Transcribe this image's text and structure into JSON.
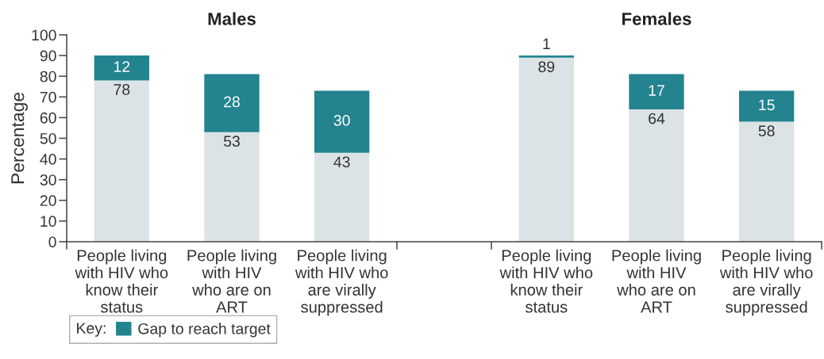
{
  "chart_data": [
    {
      "type": "bar",
      "title": "Males",
      "ylabel": "Percentage",
      "categories": [
        "People living\nwith HIV who\nknow their\nstatus",
        "People living\nwith HIV\nwho are on\nART",
        "People living\nwith HIV who\nare virally\nsuppressed"
      ],
      "stacked": true,
      "series": [
        {
          "color": "#dbe3e6",
          "values": [
            78,
            53,
            43
          ]
        },
        {
          "name": "Gap to reach target",
          "color": "#23838f",
          "values": [
            12,
            28,
            30
          ]
        }
      ],
      "ylim": [
        0,
        100
      ],
      "yticks": [
        0,
        10,
        20,
        30,
        40,
        50,
        60,
        70,
        80,
        90,
        100
      ],
      "data_labels": true,
      "legend": "bottom left",
      "legend_title": "Key:"
    },
    {
      "type": "bar",
      "title": "Females",
      "categories": [
        "People living\nwith HIV who\nknow their\nstatus",
        "People living\nwith HIV\nwho are on\nART",
        "People living\nwith HIV who\nare virally\nsuppressed"
      ],
      "stacked": true,
      "series": [
        {
          "color": "#dbe3e6",
          "values": [
            89,
            64,
            58
          ]
        },
        {
          "name": "Gap to reach target",
          "color": "#23838f",
          "values": [
            1,
            17,
            15
          ]
        }
      ],
      "ylim": [
        0,
        100
      ],
      "tick_labels": "x",
      "data_labels": true
    }
  ]
}
